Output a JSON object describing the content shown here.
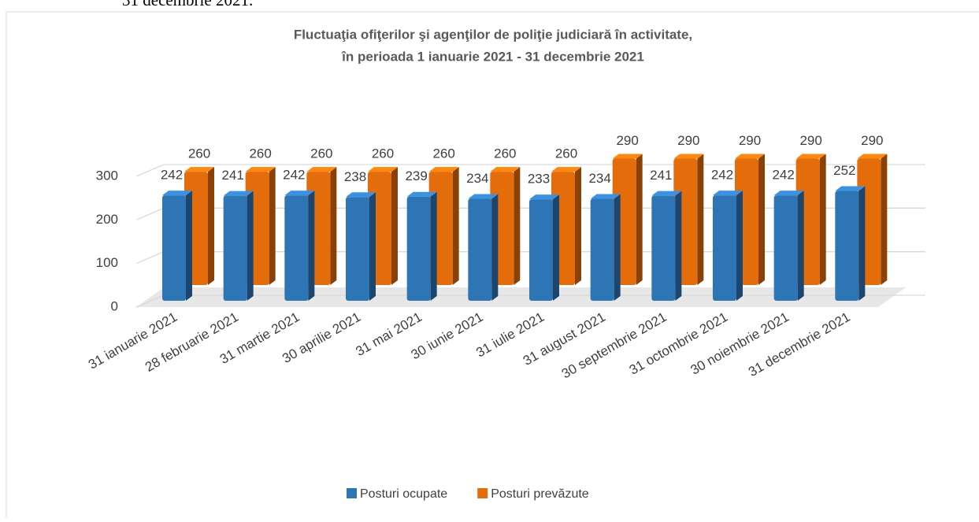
{
  "context_text": "31 decembrie 2021.",
  "chart_data": {
    "type": "bar3d",
    "title": [
      "Fluctuaţia ofiţerilor şi agenţilor de poliţie judiciară în activitate,",
      "în perioada 1 ianuarie 2021 - 31 decembrie 2021"
    ],
    "categories": [
      "31 ianuarie 2021",
      "28 februarie 2021",
      "31 martie 2021",
      "30 aprilie 2021",
      "31 mai 2021",
      "30 iunie 2021",
      "31 iulie 2021",
      "31 august 2021",
      "30 septembrie 2021",
      "31 octombrie 2021",
      "30 noiembrie 2021",
      "31 decembrie 2021"
    ],
    "series": [
      {
        "name": "Posturi ocupate",
        "color": "#2e75b6",
        "values": [
          242,
          241,
          242,
          238,
          239,
          234,
          233,
          234,
          241,
          242,
          242,
          252
        ]
      },
      {
        "name": "Posturi prevăzute",
        "color": "#e46c0a",
        "values": [
          260,
          260,
          260,
          260,
          260,
          260,
          260,
          290,
          290,
          290,
          290,
          290
        ]
      }
    ],
    "ylim": [
      0,
      300
    ],
    "yticks": [
      0,
      100,
      200,
      300
    ],
    "grid": true,
    "legend": "bottom"
  }
}
